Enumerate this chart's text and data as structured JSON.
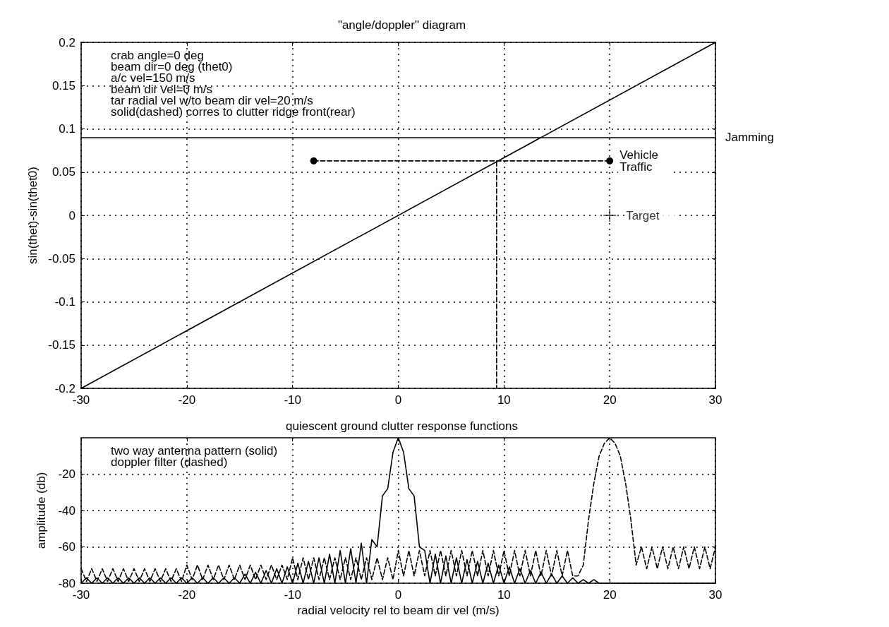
{
  "chart_data": [
    {
      "type": "line",
      "title": "\"angle/doppler\" diagram",
      "ylabel": "sin(thet)-sin(thet0)",
      "xlim": [
        -30,
        30
      ],
      "xticks": [
        -30,
        -20,
        -10,
        0,
        10,
        20,
        30
      ],
      "ylim": [
        -0.2,
        0.2
      ],
      "yticks": [
        -0.2,
        -0.15,
        -0.1,
        -0.05,
        0,
        0.05,
        0.1,
        0.15,
        0.2
      ],
      "grid": true,
      "annotations": [
        "crab angle=0 deg",
        "beam dir=0 deg (thet0)",
        "a/c vel=150 m/s",
        "beam dir vel=0 m/s",
        "tar radial vel w/to beam dir vel=20 m/s",
        "solid(dashed) corres to clutter ridge front(rear)"
      ],
      "ref_lines": [
        {
          "axis": "y",
          "value": 0.089,
          "label": "Jamming",
          "color": "#000000",
          "line_style": "solid"
        }
      ],
      "series": [
        {
          "color": "#000000",
          "x": [
            -30,
            30
          ],
          "values": [
            -0.2,
            0.2
          ],
          "line_style": "solid",
          "marker": "none"
        },
        {
          "name": "Vehicle Traffic",
          "color": "#000000",
          "x": [
            -8,
            20
          ],
          "values": [
            0.063,
            0.063
          ],
          "line_style": "dashed",
          "marker": "circle"
        },
        {
          "color": "#000000",
          "x": [
            9.3,
            9.3
          ],
          "values": [
            0.062,
            -0.2
          ],
          "line_style": "dashed",
          "marker": "none"
        },
        {
          "name": "Target",
          "type": "scatter",
          "color": "#000000",
          "x": [
            20
          ],
          "values": [
            0
          ],
          "marker": "cross"
        }
      ]
    },
    {
      "type": "line",
      "title": "quiescent ground clutter response functions",
      "xlabel": "radial velocity rel to beam dir vel (m/s)",
      "ylabel": "amplitude (db)",
      "xlim": [
        -30,
        30
      ],
      "xticks": [
        -30,
        -20,
        -10,
        0,
        10,
        20,
        30
      ],
      "ylim": [
        -80,
        0
      ],
      "yticks": [
        -80,
        -60,
        -40,
        -20
      ],
      "grid": true,
      "annotations": [
        "two way antenna pattern (solid)",
        "doppler filter (dashed)"
      ],
      "x": [
        -30,
        -29.5,
        -29,
        -28.5,
        -28,
        -27.5,
        -27,
        -26.5,
        -26,
        -25.5,
        -25,
        -24.5,
        -24,
        -23.5,
        -23,
        -22.5,
        -22,
        -21.5,
        -21,
        -20.5,
        -20,
        -19.5,
        -19,
        -18.5,
        -18,
        -17.5,
        -17,
        -16.5,
        -16,
        -15.5,
        -15,
        -14.5,
        -14,
        -13.5,
        -13,
        -12.5,
        -12,
        -11.5,
        -11,
        -10.5,
        -10,
        -9.5,
        -9,
        -8.5,
        -8,
        -7.5,
        -7,
        -6.5,
        -6,
        -5.5,
        -5,
        -4.5,
        -4,
        -3.5,
        -3,
        -2.5,
        -2,
        -1.5,
        -1,
        -0.5,
        0,
        0.5,
        1,
        1.5,
        2,
        2.5,
        3,
        3.5,
        4,
        4.5,
        5,
        5.5,
        6,
        6.5,
        7,
        7.5,
        8,
        8.5,
        9,
        9.5,
        10,
        10.5,
        11,
        11.5,
        12,
        12.5,
        13,
        13.5,
        14,
        14.5,
        15,
        15.5,
        16,
        16.5,
        17,
        17.5,
        18,
        18.5,
        19,
        19.5,
        20,
        20.5,
        21,
        21.5,
        22,
        22.5,
        23,
        23.5,
        24,
        24.5,
        25,
        25.5,
        26,
        26.5,
        27,
        27.5,
        28,
        28.5,
        29,
        29.5,
        30
      ],
      "series": [
        {
          "color": "#000000",
          "line_style": "solid",
          "marker": "none",
          "values": [
            -80,
            -77,
            -80,
            -77,
            -80,
            -77,
            -80,
            -77,
            -80,
            -77,
            -80,
            -77,
            -80,
            -77,
            -80,
            -77,
            -80,
            -77,
            -80,
            -77,
            -80,
            -77,
            -80,
            -77,
            -80,
            -77,
            -80,
            -77,
            -80,
            -77,
            -80,
            -75,
            -80,
            -74,
            -80,
            -73,
            -80,
            -72,
            -80,
            -71,
            -80,
            -69,
            -80,
            -68,
            -80,
            -66,
            -80,
            -64,
            -80,
            -62,
            -80,
            -61,
            -80,
            -58,
            -80,
            -56,
            -60,
            -32,
            -28,
            -8,
            0,
            -8,
            -28,
            -32,
            -60,
            -62,
            -80,
            -64,
            -80,
            -65,
            -80,
            -66,
            -80,
            -67,
            -80,
            -68,
            -80,
            -69,
            -80,
            -70,
            -80,
            -71,
            -80,
            -72,
            -80,
            -73,
            -80,
            -74,
            -80,
            -75,
            -80,
            -76,
            -80,
            -77,
            -80,
            -78,
            -80,
            -78,
            -80,
            -80,
            -80,
            -80,
            -80,
            -80,
            -80,
            -80,
            -80,
            -80,
            -80,
            -80,
            -80,
            -80,
            -80,
            -80,
            -80,
            -80,
            -80,
            -80,
            -80,
            -80,
            -80
          ]
        },
        {
          "color": "#000000",
          "line_style": "dashed",
          "marker": "none",
          "values": [
            -72,
            -79,
            -72,
            -79,
            -72,
            -79,
            -72,
            -79,
            -72,
            -79,
            -72,
            -79,
            -72,
            -79,
            -72,
            -79,
            -72,
            -79,
            -72,
            -79,
            -70,
            -78,
            -70,
            -78,
            -70,
            -78,
            -70,
            -78,
            -70,
            -78,
            -70,
            -78,
            -70,
            -78,
            -70,
            -78,
            -70,
            -78,
            -70,
            -78,
            -66,
            -78,
            -66,
            -78,
            -66,
            -78,
            -66,
            -78,
            -66,
            -78,
            -66,
            -78,
            -66,
            -78,
            -66,
            -78,
            -66,
            -78,
            -66,
            -78,
            -62,
            -76,
            -62,
            -76,
            -62,
            -76,
            -62,
            -76,
            -62,
            -76,
            -62,
            -76,
            -62,
            -76,
            -62,
            -76,
            -62,
            -76,
            -62,
            -76,
            -62,
            -76,
            -62,
            -76,
            -62,
            -76,
            -62,
            -76,
            -62,
            -76,
            -62,
            -76,
            -62,
            -76,
            -76,
            -70,
            -45,
            -25,
            -10,
            -3,
            0,
            -3,
            -10,
            -25,
            -45,
            -70,
            -60,
            -72,
            -60,
            -72,
            -60,
            -72,
            -60,
            -72,
            -60,
            -72,
            -60,
            -72,
            -60,
            -72,
            -60
          ]
        }
      ]
    }
  ]
}
